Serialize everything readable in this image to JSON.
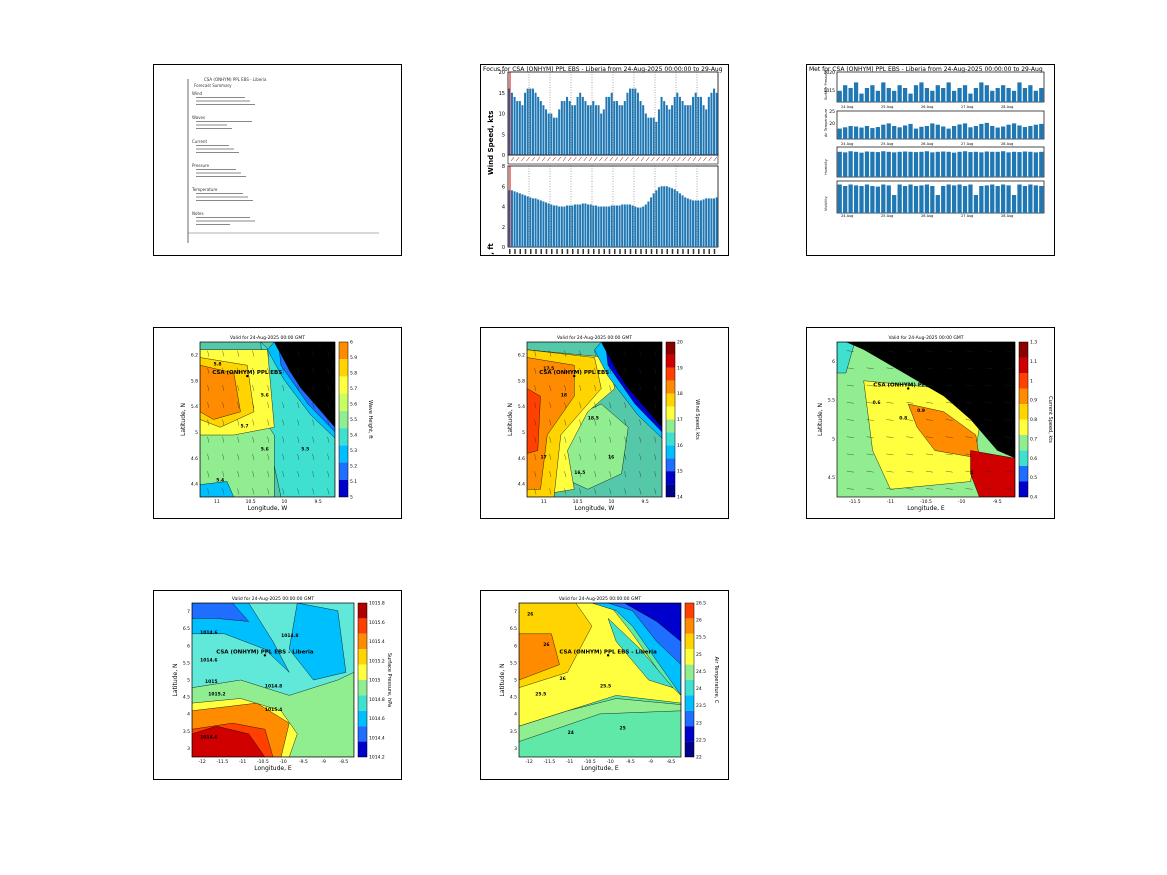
{
  "panels": {
    "report": {
      "lines": [
        "CSA (ONHYM) PPL EBS - Liberia",
        "Forecast Summary",
        "Wind",
        "Waves",
        "Current",
        "Pressure",
        "Temperature",
        "Notes"
      ]
    },
    "wind_wave": {
      "title": "Focus for CSA (ONHYM) PPL EBS - Liberia from 24-Aug-2025 00:00:00 to 29-Aug",
      "wind_ylabel": "Wind Speed, kts",
      "wave_ylabel": "Wave Height, ft",
      "wind_yticks": [
        "0",
        "5",
        "10",
        "15",
        "20"
      ],
      "wave_yticks": [
        "0",
        "2",
        "4",
        "6",
        "8"
      ]
    },
    "met_bars": {
      "title": "Met for CSA (ONHYM) PPL EBS - Liberia from 24-Aug-2025 00:00:00 to 29-Aug",
      "row_ylabels": [
        "Surface Pressure",
        "Air Temperature",
        "Humidity",
        "Visibility"
      ],
      "yticks_top": [
        "1020",
        "1015"
      ],
      "yticks_mid": [
        "25",
        "20"
      ],
      "day_labels": [
        "24 Aug",
        "25 Aug",
        "26 Aug",
        "27 Aug",
        "28 Aug"
      ]
    },
    "wave_map": {
      "title": "Valid for 24-Aug-2025 00:00 GMT",
      "site_label": "CSA (ONHYM) PPL EBS",
      "xlabel": "Longitude, W",
      "ylabel": "Latitude, N",
      "cbar_label": "Wave Height, ft",
      "xticks": [
        "11",
        "10.5",
        "10",
        "9.5"
      ],
      "yticks": [
        "6.2",
        "5.8",
        "5.4",
        "5",
        "4.6",
        "4.4"
      ],
      "cbar_ticks": [
        "6",
        "5.9",
        "5.8",
        "5.7",
        "5.6",
        "5.5",
        "5.4",
        "5.3",
        "5.2",
        "5.1",
        "5"
      ],
      "contour_labels": [
        "5.8",
        "5.6",
        "5.7",
        "5.6",
        "5.5",
        "5.4"
      ]
    },
    "wind_map": {
      "title": "Valid for 24-Aug-2025 00:00 GMT",
      "site_label": "CSA (ONHYM) PPL EBS",
      "xlabel": "Longitude, W",
      "ylabel": "Latitude, N",
      "cbar_label": "Wind Speed, kts",
      "xticks": [
        "11",
        "10.5",
        "10",
        "9.5"
      ],
      "yticks": [
        "6.2",
        "5.8",
        "5.4",
        "5",
        "4.6",
        "4.4"
      ],
      "cbar_ticks": [
        "20",
        "19",
        "18",
        "17",
        "16",
        "15",
        "14"
      ],
      "contour_labels": [
        "17.5",
        "18",
        "18.5",
        "17",
        "16.5",
        "16"
      ]
    },
    "current_map": {
      "title": "Valid for 24-Aug-2025 00:00 GMT",
      "site_label": "CSA (ONHYM) PPL EBS",
      "xlabel": "Longitude, E",
      "ylabel": "Latitude, N",
      "cbar_label": "Current Speed, kts",
      "xticks": [
        "-11.5",
        "-11",
        "-10.5",
        "-10",
        "-9.5"
      ],
      "yticks": [
        "6",
        "5.5",
        "5",
        "4.5"
      ],
      "cbar_ticks": [
        "1.3",
        "1.1",
        "1",
        "0.9",
        "0.8",
        "0.7",
        "0.6",
        "0.5",
        "0.4"
      ],
      "contour_labels": [
        "0.6",
        "0.8",
        "0.9",
        "1"
      ]
    },
    "pressure_map": {
      "title": "Valid for 24-Aug-2025 00:00:00 GMT",
      "site_label": "CSA (ONHYM) PPL EBS - Liberia",
      "xlabel": "Longitude, E",
      "ylabel": "Latitude, N",
      "cbar_label": "Surface Pressure, hPa",
      "xticks": [
        "-12",
        "-11.5",
        "-11",
        "-10.5",
        "-10",
        "-9.5",
        "-9",
        "-8.5"
      ],
      "yticks": [
        "7",
        "6.5",
        "6",
        "5.5",
        "5",
        "4.5",
        "4",
        "3.5",
        "3"
      ],
      "cbar_ticks": [
        "1015.8",
        "1015.6",
        "1015.4",
        "1015.2",
        "1015",
        "1014.8",
        "1014.6",
        "1014.4",
        "1014.2"
      ],
      "contour_labels": [
        "1014.6",
        "1014.8",
        "1014.6",
        "1014.8",
        "1015",
        "1015.2",
        "1015.4",
        "1014.6"
      ]
    },
    "airtemp_map": {
      "title": "Valid for 24-Aug-2025 00:00:00 GMT",
      "site_label": "CSA (ONHYM) PPL EBS - Liberia",
      "xlabel": "Longitude, E",
      "ylabel": "Latitude, N",
      "cbar_label": "Air Temperature, C",
      "xticks": [
        "-12",
        "-11.5",
        "-11",
        "-10.5",
        "-10",
        "-9.5",
        "-9",
        "-8.5"
      ],
      "yticks": [
        "7",
        "6.5",
        "6",
        "5.5",
        "5",
        "4.5",
        "4",
        "3.5",
        "3"
      ],
      "cbar_ticks": [
        "26.5",
        "26",
        "25.5",
        "25",
        "24.5",
        "24",
        "23.5",
        "23",
        "22.5",
        "22"
      ],
      "contour_labels": [
        "26",
        "26",
        "25.5",
        "26",
        "25.5",
        "25",
        "24"
      ]
    }
  },
  "colors": {
    "bar": "#1f77b4",
    "land": "#000000"
  },
  "chart_data": [
    {
      "type": "bar",
      "title": "Wind Speed, kts",
      "ylabel": "Wind Speed, kts",
      "ylim": [
        0,
        20
      ],
      "values": [
        16,
        15,
        14,
        13,
        13,
        12,
        15,
        16,
        16,
        16,
        15,
        14,
        13,
        12,
        11,
        10,
        10,
        9,
        9,
        11,
        13,
        13,
        14,
        13,
        12,
        12,
        14,
        15,
        14,
        13,
        12,
        12,
        13,
        12,
        12,
        10,
        11,
        14,
        14,
        15,
        13,
        13,
        12,
        12,
        13,
        15,
        16,
        16,
        16,
        15,
        13,
        12,
        10,
        9,
        9,
        9,
        8,
        11,
        14,
        13,
        12,
        11,
        12,
        14,
        15,
        14,
        13,
        12,
        12,
        12,
        14,
        15,
        14,
        14,
        12,
        11,
        14,
        15,
        16,
        15
      ]
    },
    {
      "type": "bar",
      "title": "Wave Height, ft",
      "ylabel": "Wave Height, ft",
      "ylim": [
        0,
        8
      ],
      "values": [
        5.6,
        5.6,
        5.5,
        5.4,
        5.3,
        5.2,
        5.1,
        5.0,
        4.9,
        4.8,
        4.8,
        4.7,
        4.6,
        4.5,
        4.4,
        4.3,
        4.2,
        4.1,
        4.1,
        4.0,
        4.0,
        4.0,
        4.1,
        4.1,
        4.1,
        4.2,
        4.2,
        4.2,
        4.3,
        4.3,
        4.2,
        4.2,
        4.1,
        4.1,
        4.0,
        4.0,
        4.0,
        4.0,
        4.0,
        4.1,
        4.1,
        4.1,
        4.1,
        4.2,
        4.2,
        4.2,
        4.2,
        4.1,
        4.0,
        3.9,
        3.9,
        4.0,
        4.2,
        4.5,
        4.9,
        5.3,
        5.6,
        5.9,
        6.0,
        6.0,
        6.0,
        5.9,
        5.8,
        5.7,
        5.5,
        5.3,
        5.1,
        4.9,
        4.8,
        4.7,
        4.6,
        4.6,
        4.6,
        4.6,
        4.7,
        4.8,
        4.8,
        4.8,
        4.8,
        4.9
      ]
    }
  ]
}
